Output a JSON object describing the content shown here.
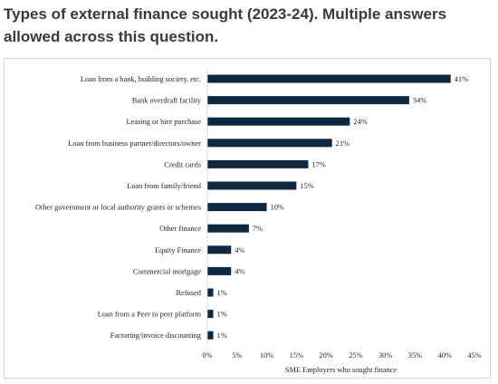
{
  "heading": "Types of external finance sought (2023-24). Multiple answers allowed across this question.",
  "chart_data": {
    "type": "bar",
    "orientation": "horizontal",
    "title": "",
    "categories": [
      "Loan from a bank, building society, etc.",
      "Bank overdraft facility",
      "Leasing or hire purchase",
      "Loan from business partner/directors/owner",
      "Credit cards",
      "Loan from family/friend",
      "Other government or local authority grants or schemes",
      "Other finance",
      "Equity Finance",
      "Commercial mortgage",
      "Refused",
      "Loan from a Peer to peer platform",
      "Factoring/invoice discounting"
    ],
    "values": [
      41,
      34,
      24,
      21,
      17,
      15,
      10,
      7,
      4,
      4,
      1,
      1,
      1
    ],
    "value_labels": [
      "41%",
      "34%",
      "24%",
      "21%",
      "17%",
      "15%",
      "10%",
      "7%",
      "4%",
      "4%",
      "1%",
      "1%",
      "1%"
    ],
    "xlabel": "SME Employers who sought finance",
    "ylabel": "",
    "xlim": [
      0,
      45
    ],
    "xticks": [
      0,
      5,
      10,
      15,
      20,
      25,
      30,
      35,
      40,
      45
    ],
    "xtick_labels": [
      "0%",
      "5%",
      "10%",
      "15%",
      "20%",
      "25%",
      "30%",
      "35%",
      "40%",
      "45%"
    ],
    "grid": false,
    "legend": "none",
    "bar_color": "#0e2841"
  }
}
